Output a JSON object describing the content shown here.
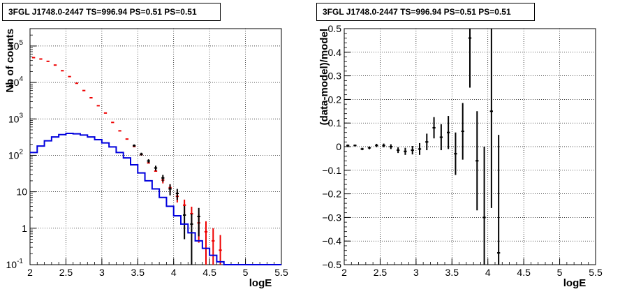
{
  "chart_data": [
    {
      "type": "line",
      "title": "3FGL J1748.0-2447 TS=996.94 PS=0.51 PS=0.51",
      "xlabel": "logE",
      "ylabel": "Nb of counts",
      "yscale": "log",
      "xlim": [
        2,
        5.5
      ],
      "ylim": [
        0.1,
        300000
      ],
      "grid": true,
      "x_ticks": [
        "2",
        "2.5",
        "3",
        "3.5",
        "4",
        "4.5",
        "5",
        "5.5"
      ],
      "y_ticks": [
        {
          "v": 0.1,
          "label": "10",
          "exp": "-1"
        },
        {
          "v": 1,
          "label": "1",
          "exp": ""
        },
        {
          "v": 10,
          "label": "10",
          "exp": ""
        },
        {
          "v": 100,
          "label": "10",
          "exp": "2"
        },
        {
          "v": 1000,
          "label": "10",
          "exp": "3"
        },
        {
          "v": 10000,
          "label": "10",
          "exp": "4"
        },
        {
          "v": 100000,
          "label": "10",
          "exp": "5"
        }
      ],
      "bin_width": 0.1,
      "series": [
        {
          "color": "#ee0000",
          "style": "markers",
          "x": [
            2.05,
            2.15,
            2.25,
            2.35,
            2.45,
            2.55,
            2.65,
            2.75,
            2.85,
            2.95,
            3.05,
            3.15,
            3.25,
            3.35,
            3.45,
            3.55,
            3.65,
            3.75,
            3.85,
            3.95,
            4.05,
            4.15,
            4.25,
            4.35,
            4.45,
            4.55,
            4.65
          ],
          "y": [
            48000,
            44000,
            38000,
            30000,
            21000,
            14500,
            9500,
            6000,
            3800,
            2300,
            1450,
            800,
            470,
            280,
            175,
            105,
            62,
            37,
            21,
            13,
            7.5,
            4.3,
            2.5,
            1.4,
            0.8,
            0.45,
            0.25
          ],
          "err": [
            0,
            0,
            0,
            0,
            0,
            0,
            0,
            0,
            0,
            0,
            0,
            0,
            0,
            0,
            0,
            0,
            0,
            0,
            4,
            3.2,
            2.4,
            1.8,
            1.4,
            1.0,
            0.75,
            0.55,
            0.4
          ]
        },
        {
          "color": "#000000",
          "style": "markers",
          "x": [
            3.45,
            3.55,
            3.65,
            3.75,
            3.85,
            3.95,
            4.05,
            4.15,
            4.25,
            4.35
          ],
          "y": [
            185,
            108,
            70,
            45,
            24,
            12,
            9,
            2.3,
            1.3,
            2.1
          ],
          "err": [
            14,
            10,
            8,
            7,
            5,
            4,
            3,
            1.8,
            1.2,
            1.5
          ]
        },
        {
          "color": "#0000dd",
          "style": "step",
          "edges": [
            2.0,
            2.1,
            2.2,
            2.3,
            2.4,
            2.5,
            2.6,
            2.7,
            2.8,
            2.9,
            3.0,
            3.1,
            3.2,
            3.3,
            3.4,
            3.5,
            3.6,
            3.7,
            3.8,
            3.9,
            4.0,
            4.1,
            4.2,
            4.3,
            4.4,
            4.5,
            4.6,
            4.7,
            5.5
          ],
          "y": [
            120,
            180,
            250,
            320,
            370,
            400,
            390,
            360,
            320,
            270,
            220,
            170,
            120,
            85,
            55,
            33,
            20,
            12,
            7,
            4,
            2.2,
            1.3,
            0.75,
            0.45,
            0.28,
            0.18,
            0.12,
            0.1
          ]
        }
      ]
    },
    {
      "type": "scatter",
      "title": "3FGL J1748.0-2447 TS=996.94 PS=0.51 PS=0.51",
      "xlabel": "logE",
      "ylabel": "(data-model)/model",
      "xlim": [
        2,
        5.5
      ],
      "ylim": [
        -0.5,
        0.5
      ],
      "grid": true,
      "x_ticks": [
        "2",
        "2.5",
        "3",
        "3.5",
        "4",
        "4.5",
        "5",
        "5.5"
      ],
      "y_ticks": [
        {
          "v": -0.5,
          "label": "−0.5"
        },
        {
          "v": -0.4,
          "label": "−0.4"
        },
        {
          "v": -0.3,
          "label": "−0.3"
        },
        {
          "v": -0.2,
          "label": "−0.2"
        },
        {
          "v": -0.1,
          "label": "−0.1"
        },
        {
          "v": 0,
          "label": "0"
        },
        {
          "v": 0.1,
          "label": "0.1"
        },
        {
          "v": 0.2,
          "label": "0.2"
        },
        {
          "v": 0.3,
          "label": "0.3"
        },
        {
          "v": 0.4,
          "label": "0.4"
        },
        {
          "v": 0.5,
          "label": "0.5"
        }
      ],
      "bin_width": 0.1,
      "series": [
        {
          "color": "#000000",
          "x": [
            2.05,
            2.15,
            2.25,
            2.35,
            2.45,
            2.55,
            2.65,
            2.75,
            2.85,
            2.95,
            3.05,
            3.15,
            3.25,
            3.35,
            3.45,
            3.55,
            3.65,
            3.75,
            3.85,
            3.95,
            4.05,
            4.15
          ],
          "y": [
            0.005,
            0.005,
            -0.01,
            -0.005,
            0.005,
            0.005,
            0.0,
            -0.015,
            -0.02,
            -0.015,
            -0.01,
            0.02,
            0.08,
            0.04,
            0.06,
            -0.03,
            0.065,
            0.46,
            -0.06,
            -0.3,
            0.15,
            -0.45
          ],
          "err": [
            0.004,
            0.004,
            0.005,
            0.006,
            0.007,
            0.008,
            0.01,
            0.012,
            0.015,
            0.018,
            0.025,
            0.035,
            0.045,
            0.055,
            0.07,
            0.09,
            0.12,
            0.21,
            0.21,
            0.3,
            0.41,
            0.5
          ]
        }
      ]
    }
  ]
}
